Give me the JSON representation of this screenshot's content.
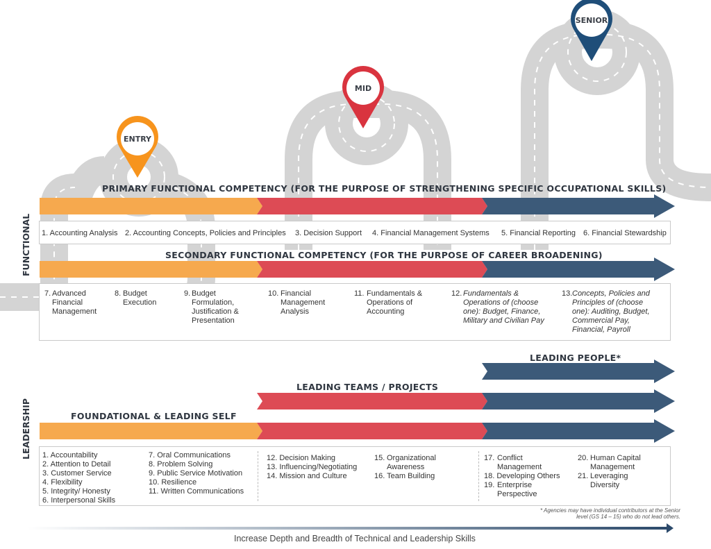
{
  "pins": {
    "entry": {
      "label": "ENTRY",
      "color": "#f7941d"
    },
    "mid": {
      "label": "MID",
      "color": "#d9343f"
    },
    "senior": {
      "label": "SENIOR",
      "color": "#1f4e79"
    }
  },
  "colors": {
    "orange": "#f6a94e",
    "red": "#dd4b55",
    "blue": "#3c5a79",
    "road": "#d4d4d4"
  },
  "side_labels": {
    "functional": "FUNCTIONAL",
    "leadership": "LEADERSHIP"
  },
  "primary": {
    "title": "PRIMARY FUNCTIONAL COMPETENCY (FOR THE PURPOSE OF STRENGTHENING SPECIFIC OCCUPATIONAL SKILLS)",
    "items": [
      "1. Accounting Analysis",
      "2. Accounting Concepts, Policies and Principles",
      "3. Decision Support",
      "4. Financial Management Systems",
      "5. Financial Reporting",
      "6. Financial Stewardship"
    ]
  },
  "secondary": {
    "title": "SECONDARY FUNCTIONAL COMPETENCY (FOR THE PURPOSE OF CAREER BROADENING)",
    "items": [
      {
        "num": "7.",
        "text": "Advanced Financial Management"
      },
      {
        "num": "8.",
        "text": "Budget Execution"
      },
      {
        "num": "9.",
        "text": "Budget Formulation, Justification & Presentation"
      },
      {
        "num": "10.",
        "text": "Financial Management Analysis"
      },
      {
        "num": "11.",
        "text": "Fundamentals & Operations of Accounting"
      },
      {
        "num": "12.",
        "text": "Fundamentals & Operations of (choose one): Budget, Finance, Military and Civilian Pay"
      },
      {
        "num": "13.",
        "text": "Concepts, Policies and Principles of (choose one): Auditing, Budget, Commercial Pay, Financial, Payroll"
      }
    ]
  },
  "leadership": {
    "foundational_title": "FOUNDATIONAL & LEADING SELF",
    "teams_title": "LEADING TEAMS / PROJECTS",
    "people_title": "LEADING PEOPLE*",
    "col1": [
      "1. Accountability",
      "2. Attention to Detail",
      "3. Customer Service",
      "4. Flexibility",
      "5. Integrity/ Honesty",
      "6. Interpersonal Skills"
    ],
    "col2": [
      "7. Oral Communications",
      "8. Problem Solving",
      "9. Public Service Motivation",
      "10. Resilience",
      "11. Written Communications"
    ],
    "col3": [
      "12. Decision Making",
      "13. Influencing/Negotiating",
      "14. Mission and Culture"
    ],
    "col4_a_num": "15.",
    "col4_a_text": "Organizational Awareness",
    "col4_b": "16. Team Building",
    "col5_a_num": "17.",
    "col5_a_text": "Conflict Management",
    "col5_b": "18. Developing Others",
    "col5_c_num": "19.",
    "col5_c_text": "Enterprise Perspective",
    "col6_a_num": "20.",
    "col6_a_text": "Human Capital Management",
    "col6_b_num": "21.",
    "col6_b_text": "Leveraging Diversity"
  },
  "footnote": "* Agencies may have individual contributors at the Senior level (GS 14 – 15) who do not lead others.",
  "bottom_label": "Increase Depth and Breadth of Technical and Leadership Skills"
}
